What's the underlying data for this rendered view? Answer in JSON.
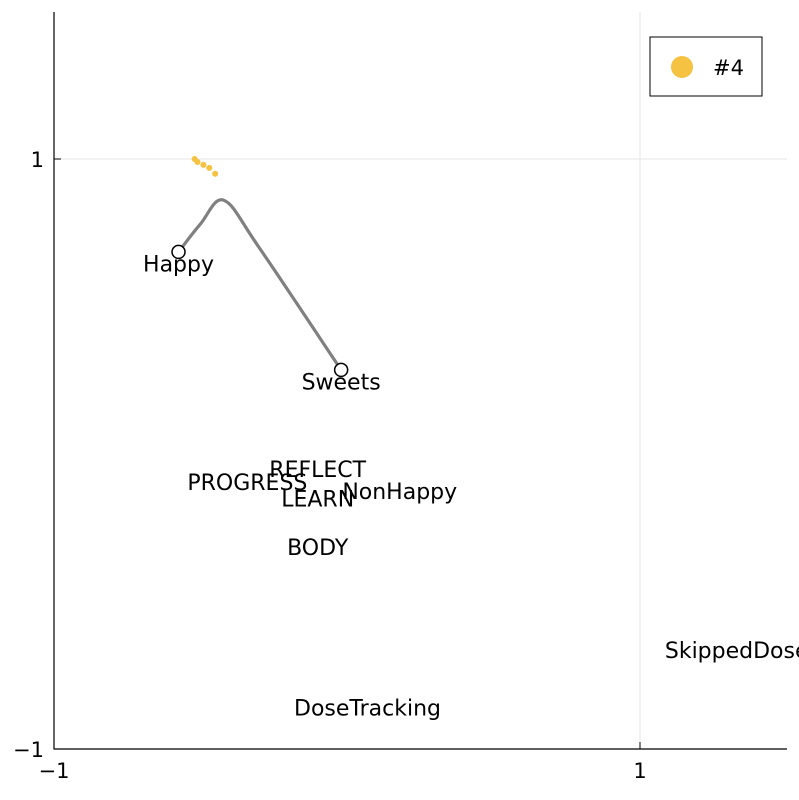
{
  "chart_data": {
    "type": "scatter",
    "xlim": [
      -1,
      1.5
    ],
    "ylim": [
      -1,
      1.5
    ],
    "x_ticks": [
      {
        "value": -1,
        "label": "−1"
      },
      {
        "value": 1,
        "label": "1"
      }
    ],
    "y_ticks": [
      {
        "value": -1,
        "label": "−1"
      },
      {
        "value": 1,
        "label": "1"
      }
    ],
    "grid": true,
    "legend_position": "top-right",
    "legend": [
      {
        "label": "#4",
        "color": "#f5c242"
      }
    ],
    "series": [
      {
        "name": "#4",
        "color": "#f5c242",
        "points": [
          {
            "x": -0.52,
            "y": 1.0
          },
          {
            "x": -0.51,
            "y": 0.99
          },
          {
            "x": -0.49,
            "y": 0.98
          },
          {
            "x": -0.47,
            "y": 0.97
          },
          {
            "x": -0.45,
            "y": 0.95
          }
        ]
      }
    ],
    "path": {
      "color": "#808080",
      "points": [
        {
          "x": -0.575,
          "y": 0.685
        },
        {
          "x": -0.5,
          "y": 0.78
        },
        {
          "x": -0.42,
          "y": 0.86
        },
        {
          "x": -0.3,
          "y": 0.7
        },
        {
          "x": -0.02,
          "y": 0.285
        }
      ]
    },
    "nodes": [
      {
        "x": -0.575,
        "y": 0.685
      },
      {
        "x": -0.02,
        "y": 0.285
      }
    ],
    "labels": [
      {
        "text": "Happy",
        "x": -0.575,
        "y": 0.645
      },
      {
        "text": "Sweets",
        "x": -0.02,
        "y": 0.245
      },
      {
        "text": "REFLECT",
        "x": -0.1,
        "y": -0.05
      },
      {
        "text": "PROGRESS",
        "x": -0.34,
        "y": -0.095
      },
      {
        "text": "NonHappy",
        "x": 0.18,
        "y": -0.125
      },
      {
        "text": "LEARN",
        "x": -0.1,
        "y": -0.15
      },
      {
        "text": "BODY",
        "x": -0.1,
        "y": -0.315
      },
      {
        "text": "SkippedDose",
        "x": 1.33,
        "y": -0.665
      },
      {
        "text": "DoseTracking",
        "x": 0.07,
        "y": -0.86
      }
    ]
  }
}
